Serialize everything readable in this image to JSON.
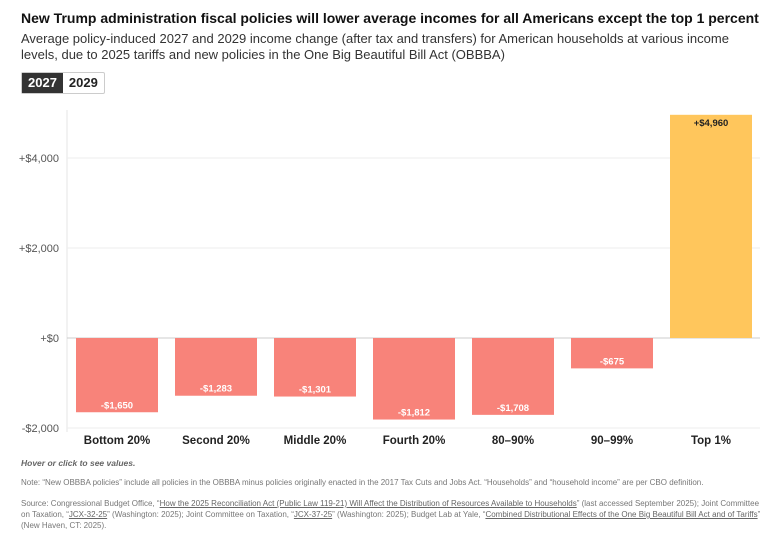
{
  "title": "New Trump administration fiscal policies will lower average incomes for all Americans except the top 1 percent",
  "subtitle": "Average policy-induced 2027 and 2029 income change (after tax and transfers) for American households at various income levels, due to 2025 tariffs and new policies in the One Big Beautiful Bill Act (OBBBA)",
  "toggle": {
    "options": [
      "2027",
      "2029"
    ],
    "selected": "2027"
  },
  "chart_data": {
    "type": "bar",
    "categories": [
      "Bottom 20%",
      "Second 20%",
      "Middle 20%",
      "Fourth 20%",
      "80–90%",
      "90–99%",
      "Top 1%"
    ],
    "values": [
      -1650,
      -1283,
      -1301,
      -1812,
      -1708,
      -675,
      4960
    ],
    "data_labels": [
      "-$1,650",
      "-$1,283",
      "-$1,301",
      "-$1,812",
      "-$1,708",
      "-$675",
      "+$4,960"
    ],
    "yticks": [
      -2000,
      0,
      2000,
      4000
    ],
    "ytick_labels": [
      "-$2,000",
      "+$0",
      "+$2,000",
      "+$4,000"
    ],
    "ylim": [
      -2200,
      5000
    ],
    "grid": true,
    "colors": {
      "negative": "#f8837a",
      "positive": "#ffc65c"
    }
  },
  "hint": "Hover or click to see values.",
  "note": "Note: “New OBBBA policies” include all policies in the OBBBA minus policies originally enacted in the 2017 Tax Cuts and Jobs Act. “Households” and “household income” are per CBO definition.",
  "source": {
    "prefix": "Source: Congressional Budget Office, “",
    "link1": "How the 2025 Reconciliation Act (Public Law 119-21) Will Affect the Distribution of Resources Available to Households",
    "mid1": "” (last accessed September 2025); Joint Committee on Taxation, “",
    "link2": "JCX-32-25",
    "mid2": "” (Washington: 2025); Joint Committee on Taxation, “",
    "link3": "JCX-37-25",
    "mid3": "” (Washington: 2025); Budget Lab at Yale, “",
    "link4": "Combined Distributional Effects of the One Big Beautiful Bill Act and of Tariffs",
    "suffix": "” (New Haven, CT: 2025)."
  }
}
